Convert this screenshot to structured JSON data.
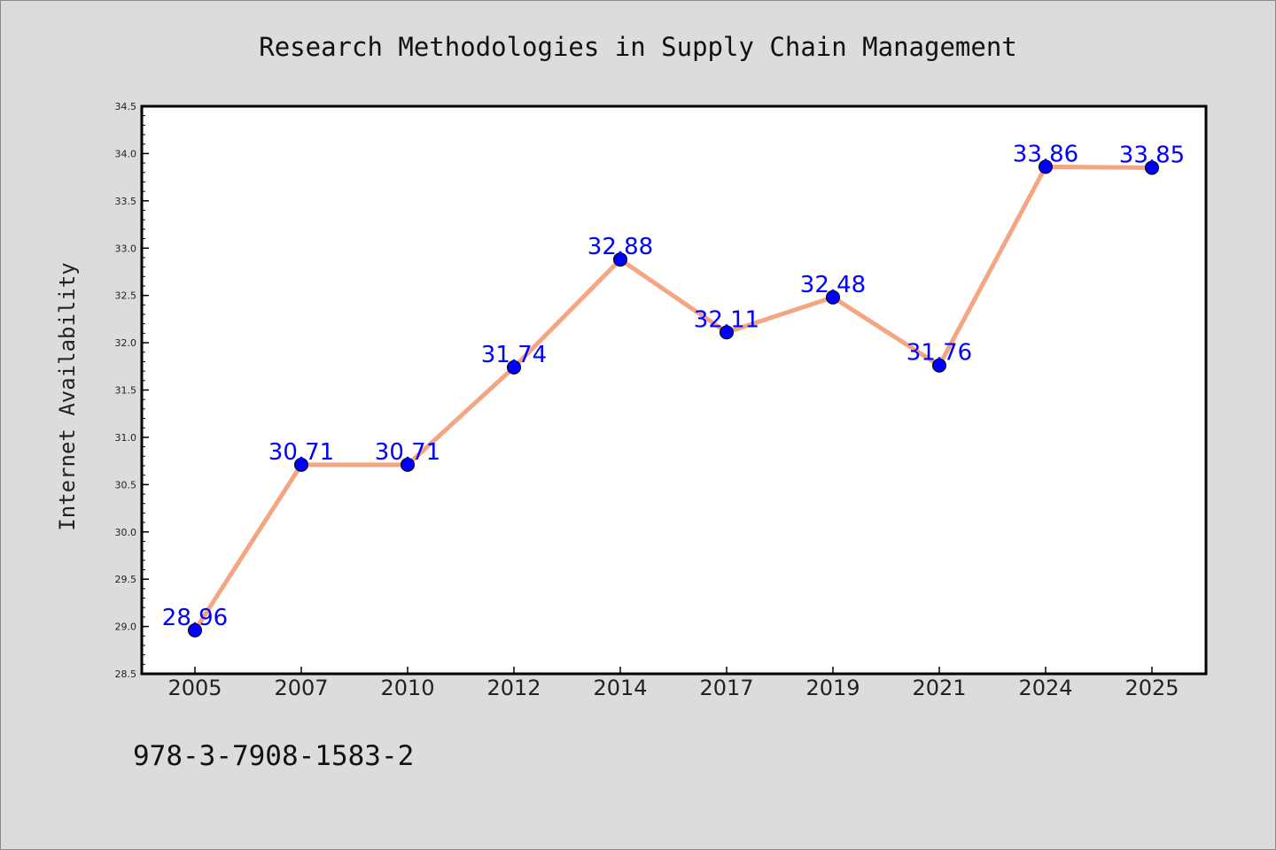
{
  "chart_data": {
    "type": "line",
    "title": "Research Methodologies in Supply Chain Management",
    "xlabel": "",
    "ylabel": "Internet Availability",
    "categories": [
      "2005",
      "2007",
      "2010",
      "2012",
      "2014",
      "2017",
      "2019",
      "2021",
      "2024",
      "2025"
    ],
    "series": [
      {
        "values": [
          28.96,
          30.71,
          30.71,
          31.74,
          32.88,
          32.11,
          32.48,
          31.76,
          33.86,
          33.85
        ],
        "line_color": "#f4a582",
        "marker_color": "#0000ff"
      }
    ],
    "data_labels": [
      "28.96",
      "30.71",
      "30.71",
      "31.74",
      "32.88",
      "32.11",
      "32.48",
      "31.76",
      "33.86",
      "33.85"
    ],
    "ylim": [
      28.5,
      34.5
    ],
    "yticks": [
      "28.5",
      "29.0",
      "29.5",
      "30.0",
      "30.5",
      "31.0",
      "31.5",
      "32.0",
      "32.5",
      "33.0",
      "33.5",
      "34.0",
      "34.5"
    ],
    "grid": false,
    "legend": "none"
  },
  "footer": {
    "isbn": "978-3-7908-1583-2"
  }
}
